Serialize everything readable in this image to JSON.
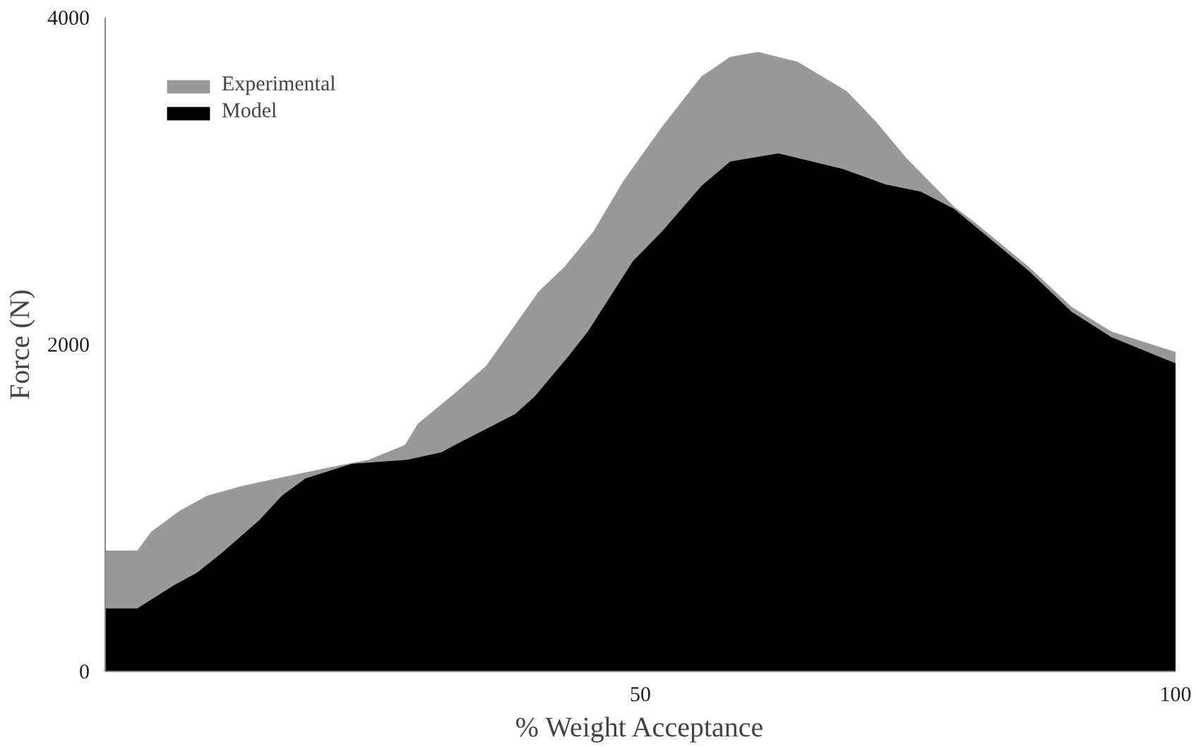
{
  "chart_data": {
    "type": "area",
    "xlabel": "% Weight Acceptance",
    "ylabel": "Force (N)",
    "xlim": [
      0,
      100
    ],
    "ylim": [
      0,
      4000
    ],
    "xticks": [
      50,
      100
    ],
    "yticks": [
      0,
      2000,
      4000
    ],
    "grid": false,
    "legend": "top left",
    "series": [
      {
        "name": "Experimental",
        "color": "#999999",
        "x": [
          0,
          3,
          4.3,
          7,
          9.5,
          12.8,
          16,
          21,
          24.6,
          28,
          29.2,
          32.8,
          35.6,
          40.5,
          42.9,
          45.6,
          48.4,
          52,
          55.7,
          58.4,
          61,
          64.7,
          69.3,
          72,
          74.8,
          79.3,
          81.2,
          86.3,
          90.3,
          94,
          100
        ],
        "values": [
          740,
          740,
          855,
          985,
          1075,
          1135,
          1180,
          1250,
          1295,
          1385,
          1515,
          1710,
          1870,
          2325,
          2475,
          2690,
          3000,
          3330,
          3640,
          3760,
          3790,
          3730,
          3550,
          3365,
          3145,
          2845,
          2750,
          2475,
          2230,
          2080,
          1955
        ]
      },
      {
        "name": "Model",
        "color": "#000000",
        "x": [
          0,
          3,
          4.3,
          6.5,
          8.6,
          10.8,
          14.4,
          16.5,
          18.7,
          23,
          28.2,
          31.4,
          32.8,
          38.3,
          40.1,
          43.3,
          45.1,
          49.3,
          52,
          55.7,
          58.4,
          62.9,
          68.9,
          72.9,
          76.2,
          79.3,
          86.3,
          90.3,
          94,
          100
        ],
        "values": [
          385,
          385,
          440,
          530,
          605,
          720,
          925,
          1075,
          1180,
          1270,
          1295,
          1340,
          1390,
          1575,
          1680,
          1930,
          2080,
          2510,
          2690,
          2970,
          3120,
          3170,
          3075,
          2980,
          2935,
          2830,
          2450,
          2200,
          2045,
          1885
        ]
      }
    ]
  }
}
